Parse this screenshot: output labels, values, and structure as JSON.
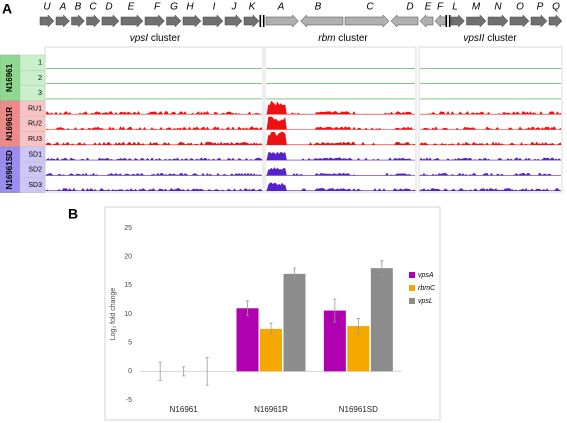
{
  "panel_a": {
    "label": "A",
    "genes": {
      "vpsI": [
        "U",
        "A",
        "B",
        "C",
        "D",
        "E",
        "F",
        "G",
        "H",
        "I",
        "J",
        "K"
      ],
      "rbm": [
        "A",
        "B",
        "C",
        "D",
        "E",
        "F"
      ],
      "vpsII": [
        "L",
        "M",
        "N",
        "O",
        "P",
        "Q"
      ]
    },
    "clusters": [
      {
        "name": "vpsI",
        "word": "cluster"
      },
      {
        "name": "rbm",
        "word": "cluster"
      },
      {
        "name": "vpsII",
        "word": "cluster"
      }
    ],
    "groups": [
      {
        "name": "N16961",
        "tracks": [
          "1",
          "2",
          "3"
        ],
        "color": "#33aa33"
      },
      {
        "name": "N16961R",
        "tracks": [
          "RU1",
          "RU2",
          "RU3"
        ],
        "color": "#ee1111"
      },
      {
        "name": "N16961SD",
        "tracks": [
          "SD1",
          "SD2",
          "SD3"
        ],
        "color": "#5522cc"
      }
    ]
  },
  "chart_data": {
    "type": "bar",
    "panel_label": "B",
    "ylabel": "Log₂ fold change",
    "categories": [
      "N16961",
      "N16961R",
      "N16961SD"
    ],
    "series": [
      {
        "name": "vpsA",
        "color": "#b000b0",
        "values": [
          0,
          11,
          10.6
        ],
        "errors": [
          1.6,
          1.3,
          2.0
        ]
      },
      {
        "name": "rbmC",
        "color": "#f5a800",
        "values": [
          0,
          7.4,
          7.9
        ],
        "errors": [
          0.8,
          1.0,
          1.3
        ]
      },
      {
        "name": "vpsL",
        "color": "#8c8c8c",
        "values": [
          0,
          17,
          18
        ],
        "errors": [
          2.4,
          1.0,
          1.3
        ]
      }
    ],
    "ylim": [
      -5,
      25
    ],
    "yticks": [
      -5,
      0,
      5,
      10,
      15,
      20,
      25
    ],
    "legend": "right",
    "grid": false
  }
}
